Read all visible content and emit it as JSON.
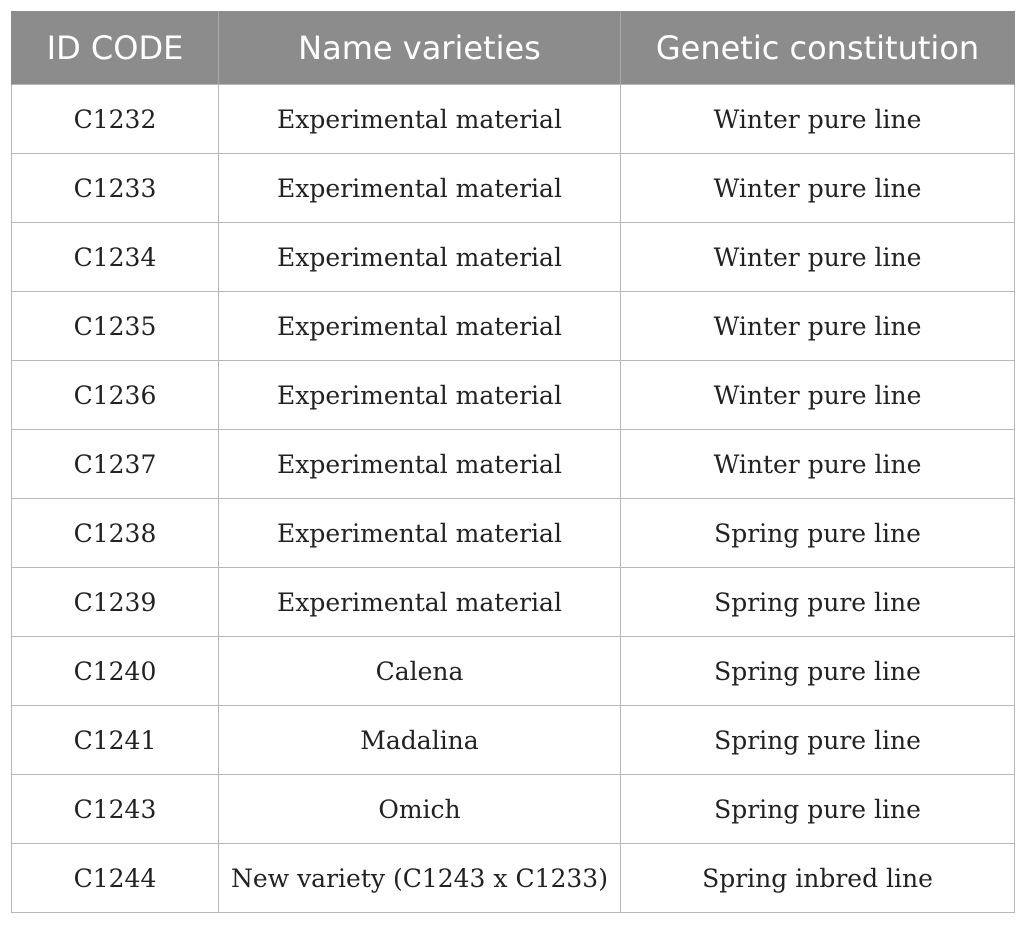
{
  "table": {
    "headers": [
      "ID CODE",
      "Name varieties",
      "Genetic constitution"
    ],
    "rows": [
      [
        "C1232",
        "Experimental material",
        "Winter pure line"
      ],
      [
        "C1233",
        "Experimental material",
        "Winter pure line"
      ],
      [
        "C1234",
        "Experimental material",
        "Winter pure line"
      ],
      [
        "C1235",
        "Experimental material",
        "Winter pure line"
      ],
      [
        "C1236",
        "Experimental material",
        "Winter pure line"
      ],
      [
        "C1237",
        "Experimental material",
        "Winter pure line"
      ],
      [
        "C1238",
        "Experimental material",
        "Spring pure line"
      ],
      [
        "C1239",
        "Experimental material",
        "Spring pure line"
      ],
      [
        "C1240",
        "Calena",
        "Spring pure line"
      ],
      [
        "C1241",
        "Madalina",
        "Spring pure line"
      ],
      [
        "C1243",
        "Omich",
        "Spring pure line"
      ],
      [
        "C1244",
        "New variety (C1243 x C1233)",
        "Spring inbred line"
      ]
    ]
  },
  "colors": {
    "header_background": "#8c8c8c",
    "header_text": "#ffffff",
    "cell_border": "#b8b8b8",
    "cell_text": "#222222"
  }
}
